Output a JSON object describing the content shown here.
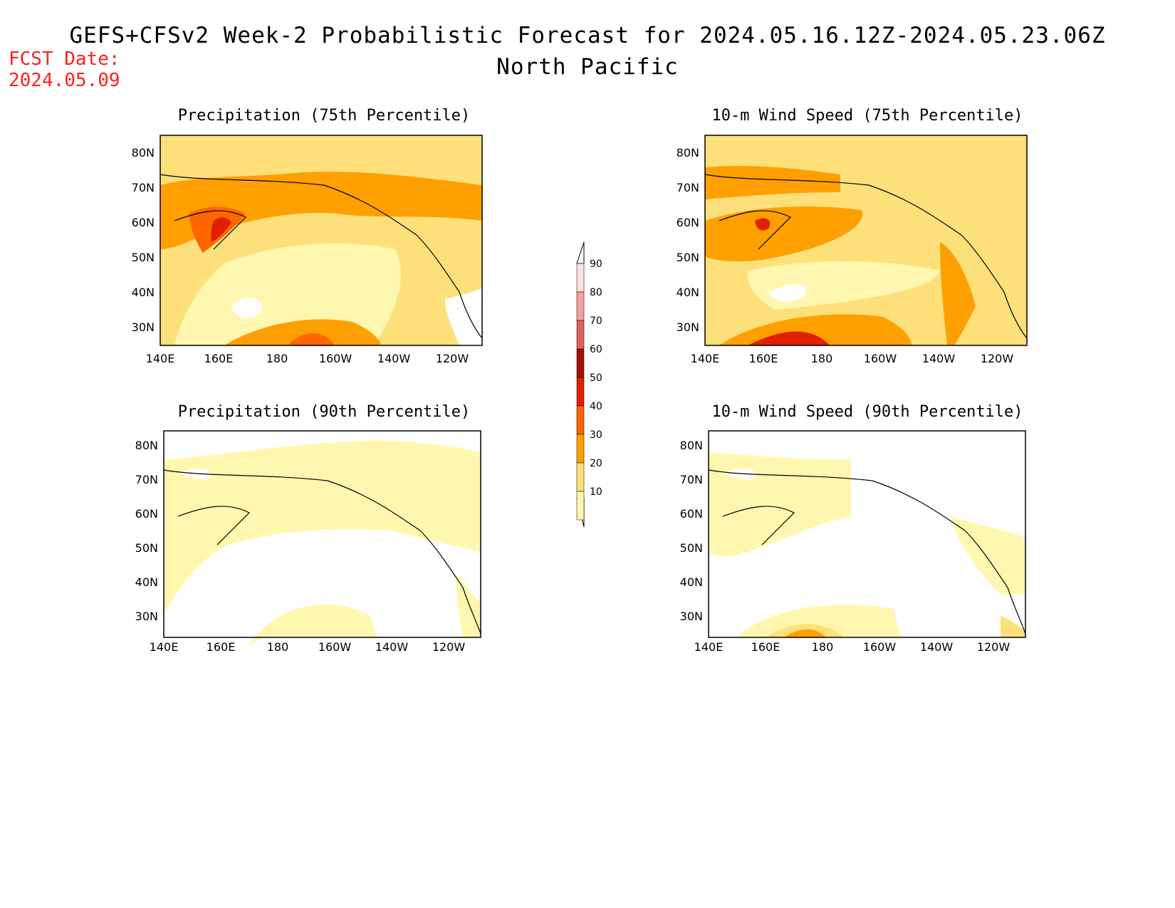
{
  "header": {
    "title": "GEFS+CFSv2 Week-2 Probabilistic Forecast for 2024.05.16.12Z-2024.05.23.06Z",
    "subtitle": "North Pacific",
    "fcst_label": "FCST Date:",
    "fcst_date": "2024.05.09"
  },
  "panels": [
    {
      "id": "precip75",
      "title": "Precipitation (75th Percentile)"
    },
    {
      "id": "wind75",
      "title": "10-m Wind Speed (75th Percentile)"
    },
    {
      "id": "precip90",
      "title": "Precipitation (90th Percentile)"
    },
    {
      "id": "wind90",
      "title": "10-m Wind Speed (90th Percentile)"
    }
  ],
  "axes": {
    "lat_ticks": [
      "80N",
      "70N",
      "60N",
      "50N",
      "40N",
      "30N"
    ],
    "lon_ticks": [
      "140E",
      "160E",
      "180",
      "160W",
      "140W",
      "120W"
    ]
  },
  "colorbar": {
    "levels": [
      "90",
      "80",
      "70",
      "60",
      "50",
      "40",
      "30",
      "20",
      "10"
    ],
    "colors": [
      "#fde0e0",
      "#f4a0a0",
      "#e06060",
      "#a50f00",
      "#e02000",
      "#ff6600",
      "#ff9f00",
      "#fde07a",
      "#fff7b0"
    ]
  }
}
